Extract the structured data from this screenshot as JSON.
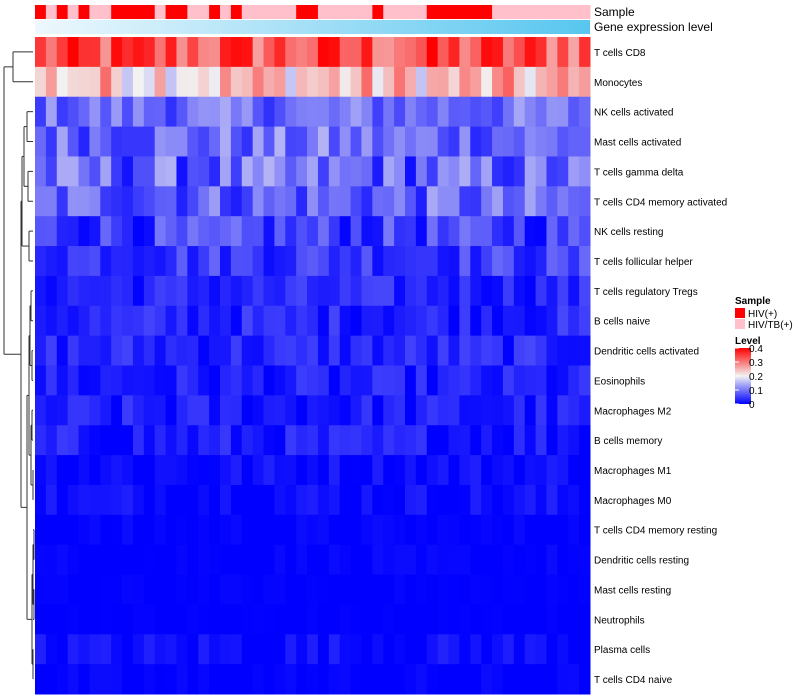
{
  "chart_data": {
    "type": "heatmap",
    "title": "",
    "annotations": {
      "sample_track_label": "Sample",
      "gene_track_label": "Gene expression level",
      "sample_groups": [
        "HIV(+)",
        "HIV/TB(+)"
      ],
      "sample_pattern": [
        0,
        1,
        0,
        1,
        0,
        1,
        1,
        0,
        0,
        0,
        0,
        1,
        0,
        0,
        1,
        1,
        0,
        1,
        0,
        1,
        1,
        1,
        1,
        1,
        0,
        0,
        1,
        1,
        1,
        1,
        1,
        0,
        1,
        1,
        1,
        1,
        0,
        0,
        0,
        0,
        0,
        0,
        1,
        1,
        1,
        1,
        1,
        1,
        1,
        1,
        1
      ],
      "gene_expression_range": [
        "#e8f6fc",
        "#5bc8ee"
      ]
    },
    "rows": [
      "T cells CD8",
      "Monocytes",
      "NK cells activated",
      "Mast cells activated",
      "T cells gamma delta",
      "T cells CD4 memory activated",
      "NK cells resting",
      "T cells follicular helper",
      "T cells regulatory  Tregs",
      "B cells naive",
      "Dendritic cells activated",
      "Eosinophils",
      "Macrophages M2",
      "B cells memory",
      "Macrophages M1",
      "Macrophages M0",
      "T cells CD4 memory resting",
      "Dendritic cells resting",
      "Mast cells resting",
      "Neutrophils",
      "Plasma cells",
      "T cells CD4 naive"
    ],
    "row_means": [
      0.33,
      0.24,
      0.09,
      0.09,
      0.08,
      0.08,
      0.05,
      0.05,
      0.03,
      0.03,
      0.03,
      0.02,
      0.02,
      0.02,
      0.01,
      0.01,
      0.0,
      0.0,
      0.0,
      0.0,
      0.01,
      0.0
    ],
    "row_spreads": [
      0.08,
      0.08,
      0.05,
      0.06,
      0.07,
      0.06,
      0.05,
      0.04,
      0.03,
      0.03,
      0.03,
      0.03,
      0.03,
      0.03,
      0.02,
      0.02,
      0.01,
      0.01,
      0.005,
      0.003,
      0.02,
      0.01
    ],
    "n_samples": 51,
    "color_scale": {
      "min": 0,
      "max": 0.4,
      "low": "#0000ff",
      "mid": "#f2f2f2",
      "high": "#ff0000",
      "mid_value": 0.2
    },
    "legend": {
      "sample_title": "Sample",
      "level_title": "Level",
      "level_ticks": [
        "0.4",
        "0.3",
        "0.2",
        "0.1",
        "0"
      ],
      "placement": "right"
    }
  }
}
